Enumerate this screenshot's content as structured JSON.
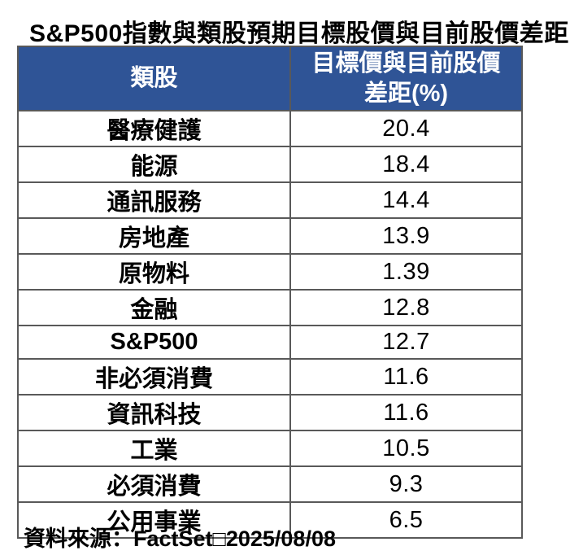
{
  "title": "S&P500指數與類股預期目標股價與目前股價差距",
  "colors": {
    "header_bg": "#2F5496",
    "header_text": "#FFFFFF",
    "grid_line": "#595959",
    "outer_border": "#2E2E2E",
    "body_text": "#000000"
  },
  "table": {
    "header": {
      "sector_label": "類股",
      "value_label_line1": "目標價與目前股價",
      "value_label_line2": "差距(%)"
    },
    "rows": [
      {
        "name": "醫療健護",
        "value": "20.4"
      },
      {
        "name": "能源",
        "value": "18.4"
      },
      {
        "name": "通訊服務",
        "value": "14.4"
      },
      {
        "name": "房地產",
        "value": "13.9"
      },
      {
        "name": "原物料",
        "value": "1.39"
      },
      {
        "name": "金融",
        "value": "12.8"
      },
      {
        "name": "S&P500",
        "value": "12.7"
      },
      {
        "name": "非必須消費",
        "value": "11.6"
      },
      {
        "name": "資訊科技",
        "value": "11.6"
      },
      {
        "name": "工業",
        "value": "10.5"
      },
      {
        "name": "必須消費",
        "value": "9.3"
      },
      {
        "name": "公用事業",
        "value": "6.5"
      }
    ]
  },
  "footer": {
    "source": "資料來源：FactSet□2025/08/08"
  },
  "chart_data": {
    "type": "table",
    "title": "S&P500指數與類股預期目標股價與目前股價差距",
    "columns": [
      "類股",
      "目標價與目前股價差距(%)"
    ],
    "categories": [
      "醫療健護",
      "能源",
      "通訊服務",
      "房地產",
      "原物料",
      "金融",
      "S&P500",
      "非必須消費",
      "資訊科技",
      "工業",
      "必須消費",
      "公用事業"
    ],
    "values": [
      20.4,
      18.4,
      14.4,
      13.9,
      1.39,
      12.8,
      12.7,
      11.6,
      11.6,
      10.5,
      9.3,
      6.5
    ],
    "source": "資料來源：FactSet□2025/08/08",
    "layout_hints": {
      "header_background": "#2F5496",
      "header_text_color": "#FFFFFF",
      "sector_names_bold": true,
      "values_regular_weight": true
    }
  }
}
